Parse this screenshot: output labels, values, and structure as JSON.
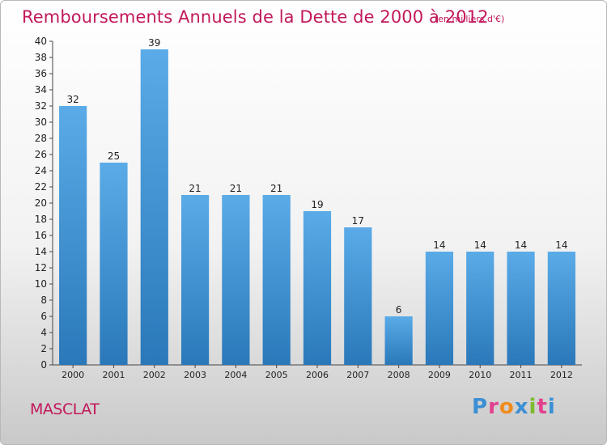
{
  "header": {
    "title": "Remboursements Annuels de la Dette de 2000 à 2012",
    "subtitle": "(en milliers d'€)"
  },
  "footer": {
    "commune": "MASCLAT",
    "logo": {
      "letters": [
        "P",
        "r",
        "o",
        "x",
        "i",
        "t",
        "i"
      ],
      "colors": [
        "#3b8fd4",
        "#e2418f",
        "#f08c1e",
        "#3b8fd4",
        "#7dbb2e",
        "#e2418f",
        "#3b8fd4"
      ]
    }
  },
  "chart_data": {
    "type": "bar",
    "title": "Remboursements Annuels de la Dette de 2000 à 2012",
    "categories": [
      "2000",
      "2001",
      "2002",
      "2003",
      "2004",
      "2005",
      "2006",
      "2007",
      "2008",
      "2009",
      "2010",
      "2011",
      "2012"
    ],
    "values": [
      32,
      25,
      39,
      21,
      21,
      21,
      19,
      17,
      6,
      14,
      14,
      14,
      14
    ],
    "ylim": [
      0,
      40
    ],
    "yticks": [
      0,
      2,
      4,
      6,
      8,
      10,
      12,
      14,
      16,
      18,
      20,
      22,
      24,
      26,
      28,
      30,
      32,
      34,
      36,
      38,
      40
    ],
    "grid": false,
    "bar_color_top": "#5aabe8",
    "bar_color_bottom": "#2a78b9",
    "data_labels": true
  }
}
